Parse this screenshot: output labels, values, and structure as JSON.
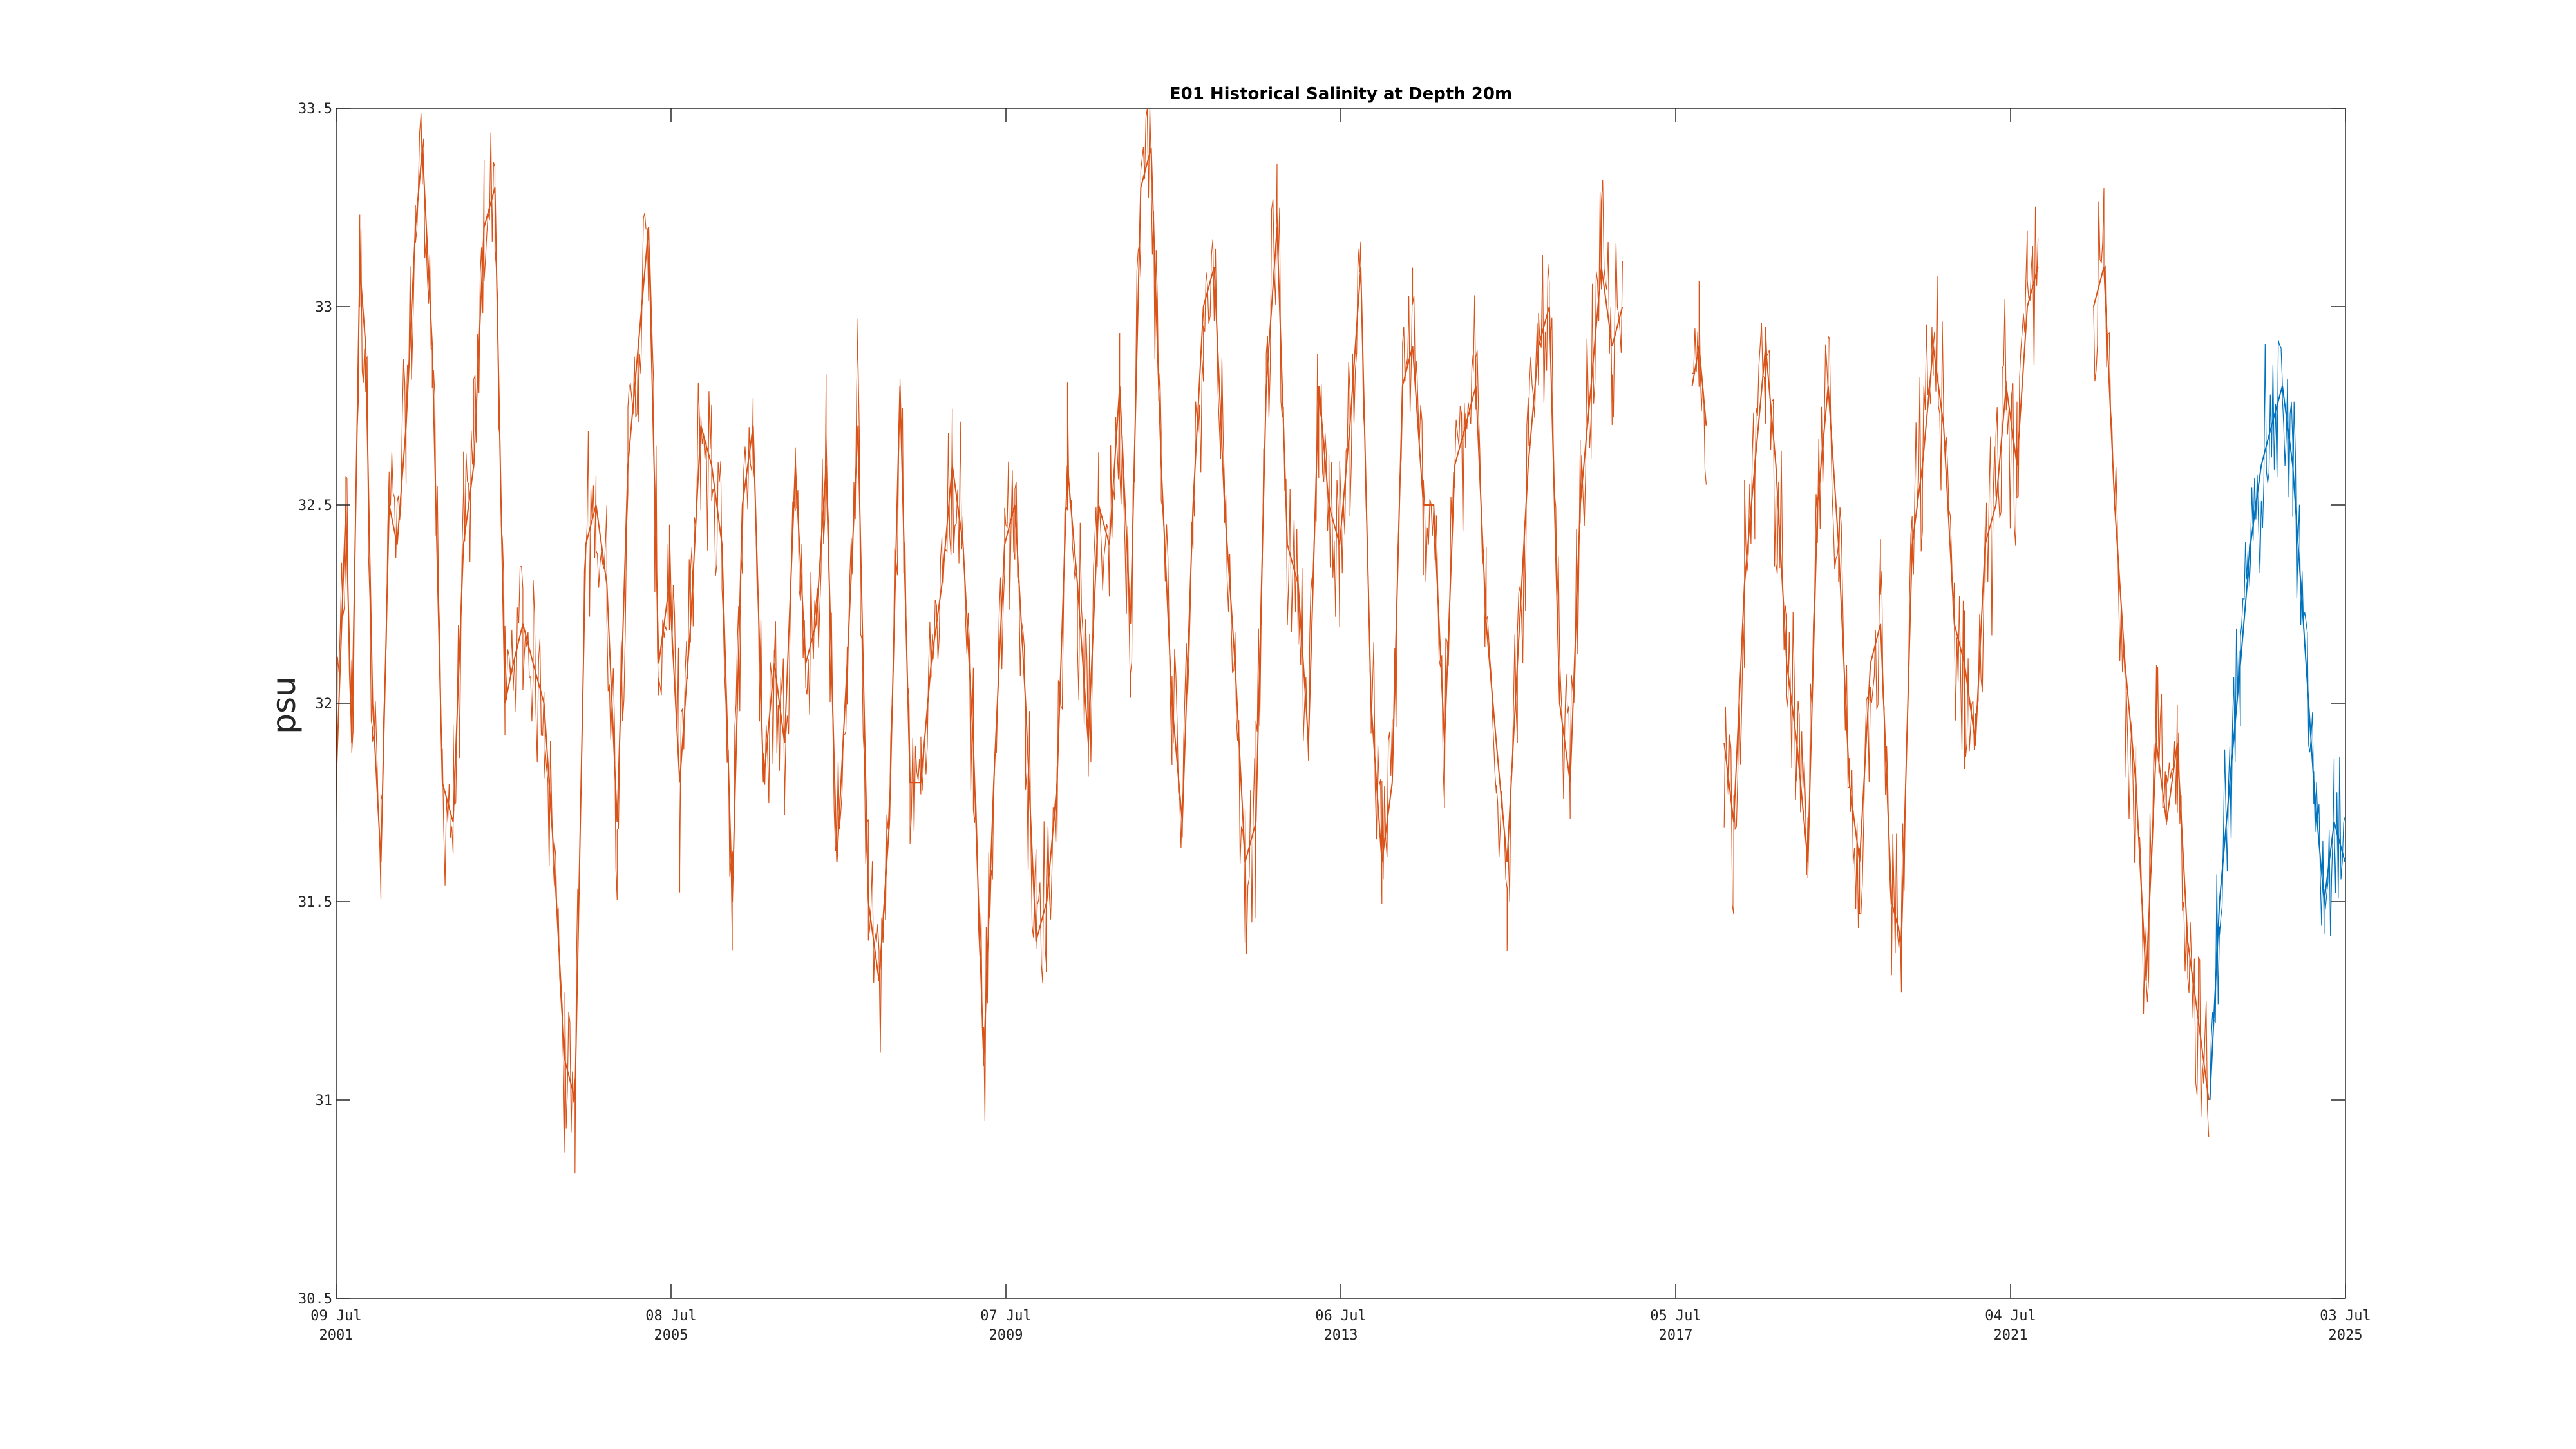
{
  "chart_data": {
    "type": "line",
    "title": "E01 Historical Salinity at Depth 20m",
    "xlabel": "",
    "ylabel": "psu",
    "ylim": [
      30.5,
      33.5
    ],
    "xlim": [
      "2001-07-09",
      "2025-07-03"
    ],
    "grid": false,
    "y_ticks": [
      "30.5",
      "31",
      "31.5",
      "32",
      "32.5",
      "33",
      "33.5"
    ],
    "y_tick_values": [
      30.5,
      31,
      31.5,
      32,
      32.5,
      33,
      33.5
    ],
    "x_ticks": [
      {
        "date": "2001-07-09",
        "line1": "09 Jul",
        "line2": "2001"
      },
      {
        "date": "2005-07-08",
        "line1": "08 Jul",
        "line2": "2005"
      },
      {
        "date": "2009-07-07",
        "line1": "07 Jul",
        "line2": "2009"
      },
      {
        "date": "2013-07-06",
        "line1": "06 Jul",
        "line2": "2013"
      },
      {
        "date": "2017-07-05",
        "line1": "05 Jul",
        "line2": "2017"
      },
      {
        "date": "2021-07-04",
        "line1": "04 Jul",
        "line2": "2021"
      },
      {
        "date": "2025-07-03",
        "line1": "03 Jul",
        "line2": "2025"
      }
    ],
    "series": [
      {
        "color": "#D95319",
        "segments": [
          {
            "x": [
              "2001-07-09",
              "2001-08-20",
              "2001-09-15",
              "2001-10-20",
              "2001-11-15",
              "2001-12-15",
              "2002-01-20",
              "2002-02-25",
              "2002-04-01",
              "2002-05-10",
              "2002-06-20",
              "2002-07-20",
              "2002-09-01",
              "2002-10-15",
              "2002-12-01",
              "2003-01-15",
              "2003-03-01",
              "2003-04-15",
              "2003-06-01",
              "2003-07-15",
              "2003-08-20",
              "2003-10-01",
              "2003-11-15",
              "2004-01-01",
              "2004-02-15",
              "2004-04-01",
              "2004-05-15",
              "2004-07-01",
              "2004-08-15",
              "2004-10-01",
              "2004-11-15",
              "2005-01-01",
              "2005-02-15",
              "2005-04-01",
              "2005-05-15",
              "2005-07-01",
              "2005-08-15",
              "2005-10-01",
              "2005-11-15",
              "2006-01-01",
              "2006-02-15",
              "2006-04-01",
              "2006-05-15",
              "2006-07-01",
              "2006-08-15",
              "2006-10-01",
              "2006-11-15",
              "2007-01-01",
              "2007-02-15",
              "2007-04-01",
              "2007-05-15",
              "2007-07-01",
              "2007-08-15",
              "2007-10-01",
              "2007-11-15",
              "2008-01-01",
              "2008-02-15",
              "2008-04-01",
              "2008-05-15",
              "2008-07-01",
              "2008-08-15",
              "2008-10-01",
              "2008-11-15",
              "2009-01-01",
              "2009-02-15",
              "2009-04-01",
              "2009-05-15",
              "2009-07-01",
              "2009-08-15",
              "2009-10-01",
              "2009-11-15",
              "2010-01-01",
              "2010-02-15",
              "2010-04-01",
              "2010-05-15",
              "2010-07-01",
              "2010-08-15",
              "2010-10-01",
              "2010-11-15",
              "2011-01-01",
              "2011-02-15",
              "2011-04-01",
              "2011-05-15",
              "2011-07-01",
              "2011-08-15",
              "2011-10-01",
              "2011-11-15",
              "2012-01-01",
              "2012-02-15",
              "2012-04-01",
              "2012-05-15",
              "2012-07-01",
              "2012-08-15",
              "2012-10-01",
              "2012-11-15",
              "2013-01-01",
              "2013-02-15",
              "2013-04-01",
              "2013-05-15",
              "2013-07-01",
              "2013-08-15",
              "2013-10-01",
              "2013-11-15",
              "2014-01-01",
              "2014-02-15",
              "2014-04-01",
              "2014-05-15",
              "2014-07-01",
              "2014-08-15",
              "2014-10-01",
              "2014-11-15",
              "2015-01-01",
              "2015-02-15",
              "2015-04-01",
              "2015-05-15",
              "2015-07-01",
              "2015-08-15",
              "2015-10-01",
              "2015-11-15",
              "2016-01-01",
              "2016-02-15",
              "2016-04-01",
              "2016-05-15",
              "2016-07-01",
              "2016-08-15",
              "2016-10-01",
              "2016-11-15"
            ],
            "y": [
              31.8,
              32.5,
              31.9,
              33.1,
              32.9,
              32.0,
              31.6,
              32.5,
              32.4,
              32.7,
              33.2,
              33.4,
              32.9,
              31.8,
              31.7,
              32.4,
              32.6,
              33.2,
              33.3,
              32.0,
              32.1,
              32.2,
              32.1,
              32.0,
              31.6,
              31.1,
              31.0,
              32.4,
              32.5,
              32.3,
              31.7,
              32.6,
              32.9,
              33.2,
              32.1,
              32.3,
              31.8,
              32.2,
              32.7,
              32.6,
              32.4,
              31.5,
              32.5,
              32.7,
              31.8,
              32.1,
              31.9,
              32.6,
              32.1,
              32.2,
              32.6,
              31.6,
              32.1,
              32.7,
              31.5,
              31.3,
              31.7,
              32.8,
              31.8,
              31.8,
              32.1,
              32.3,
              32.6,
              32.4,
              31.9,
              31.1,
              31.8,
              32.4,
              32.5,
              32.0,
              31.4,
              31.5,
              31.8,
              32.6,
              32.3,
              31.9,
              32.5,
              32.4,
              32.8,
              32.2,
              33.3,
              33.4,
              32.6,
              32.0,
              31.7,
              32.5,
              33.0,
              33.1,
              32.5,
              32.1,
              31.6,
              31.7,
              32.8,
              33.2,
              32.4,
              32.3,
              31.9,
              32.8,
              32.5,
              32.4,
              32.7,
              33.1,
              32.0,
              31.6,
              31.8,
              32.8,
              32.9,
              32.5,
              32.5,
              31.9,
              32.6,
              32.7,
              32.8,
              32.2,
              31.9,
              31.6,
              32.1,
              32.6,
              32.9,
              33.0,
              32.0,
              31.8,
              32.5,
              32.8,
              33.1,
              32.9,
              33.0
            ]
          },
          {
            "x": [
              "2017-09-15",
              "2017-10-15",
              "2017-11-15"
            ],
            "y": [
              32.8,
              32.9,
              32.7
            ]
          },
          {
            "x": [
              "2018-02-01",
              "2018-03-15",
              "2018-05-01",
              "2018-06-15",
              "2018-08-01",
              "2018-09-15",
              "2018-11-01",
              "2018-12-15",
              "2019-02-01",
              "2019-03-15",
              "2019-05-01",
              "2019-06-15",
              "2019-08-01",
              "2019-09-15",
              "2019-11-01",
              "2019-12-15",
              "2020-02-01",
              "2020-03-15",
              "2020-05-01",
              "2020-06-15",
              "2020-08-01",
              "2020-09-15",
              "2020-11-01",
              "2020-12-15",
              "2021-02-01",
              "2021-03-15",
              "2021-05-01",
              "2021-06-15",
              "2021-08-01",
              "2021-09-15",
              "2021-11-01"
            ],
            "y": [
              31.9,
              31.7,
              32.3,
              32.6,
              32.9,
              32.6,
              32.1,
              31.9,
              31.6,
              32.5,
              32.8,
              32.4,
              31.8,
              31.6,
              32.1,
              32.2,
              31.5,
              31.4,
              32.4,
              32.6,
              32.9,
              32.7,
              32.2,
              32.1,
              31.9,
              32.4,
              32.5,
              32.8,
              32.6,
              33.0,
              33.1
            ]
          },
          {
            "x": [
              "2022-07-01",
              "2022-08-15",
              "2022-10-01",
              "2022-11-15",
              "2023-01-01",
              "2023-02-15",
              "2023-04-01",
              "2023-05-15",
              "2023-07-01",
              "2023-08-15",
              "2023-10-01",
              "2023-11-15"
            ],
            "y": [
              33.0,
              33.1,
              32.5,
              32.1,
              31.8,
              31.3,
              31.9,
              31.7,
              31.9,
              31.4,
              31.2,
              31.0
            ]
          }
        ]
      },
      {
        "color": "#0072BD",
        "segments": [
          {
            "x": [
              "2023-11-20",
              "2024-01-01",
              "2024-02-15",
              "2024-04-01",
              "2024-05-15",
              "2024-07-01",
              "2024-08-15",
              "2024-10-01",
              "2024-11-15",
              "2025-01-01",
              "2025-02-15",
              "2025-04-01",
              "2025-05-15",
              "2025-07-01"
            ],
            "y": [
              31.0,
              31.5,
              31.8,
              32.1,
              32.4,
              32.6,
              32.7,
              32.8,
              32.6,
              32.2,
              31.8,
              31.5,
              31.7,
              31.6
            ]
          }
        ]
      }
    ]
  }
}
